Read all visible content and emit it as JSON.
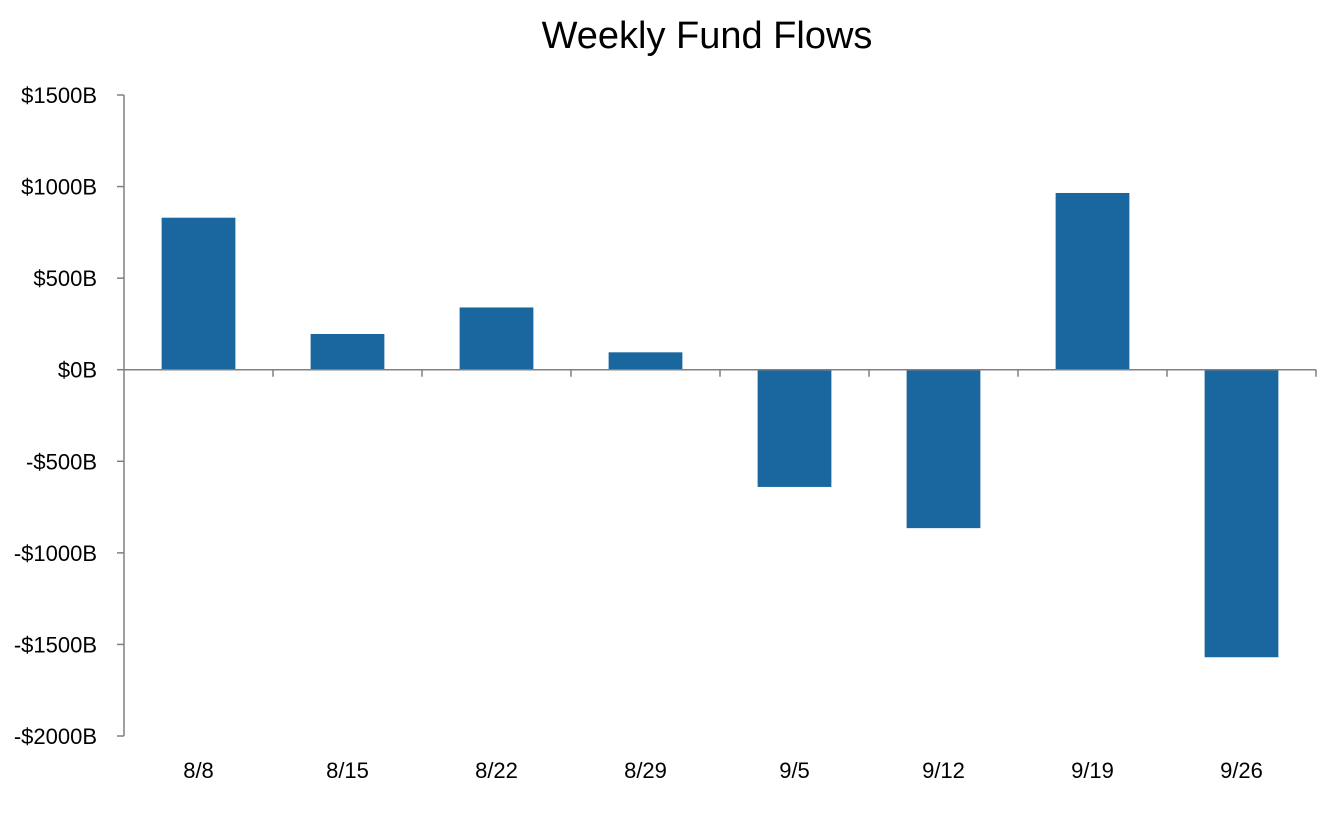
{
  "chart_data": {
    "type": "bar",
    "title": "Weekly Fund Flows",
    "xlabel": "",
    "ylabel": "",
    "categories": [
      "8/8",
      "8/15",
      "8/22",
      "8/29",
      "9/5",
      "9/12",
      "9/19",
      "9/26"
    ],
    "values": [
      830,
      195,
      340,
      95,
      -640,
      -865,
      965,
      -1570
    ],
    "ylim": [
      -2000,
      1500
    ],
    "yticks": [
      1500,
      1000,
      500,
      0,
      -500,
      -1000,
      -1500,
      -2000
    ],
    "ytick_labels": [
      "$1500B",
      "$1000B",
      "$500B",
      "$0B",
      "-$500B",
      "-$1000B",
      "-$1500B",
      "-$2000B"
    ],
    "grid": false,
    "legend": "none",
    "bar_color": "#1a669e",
    "axis_color": "#808080"
  }
}
